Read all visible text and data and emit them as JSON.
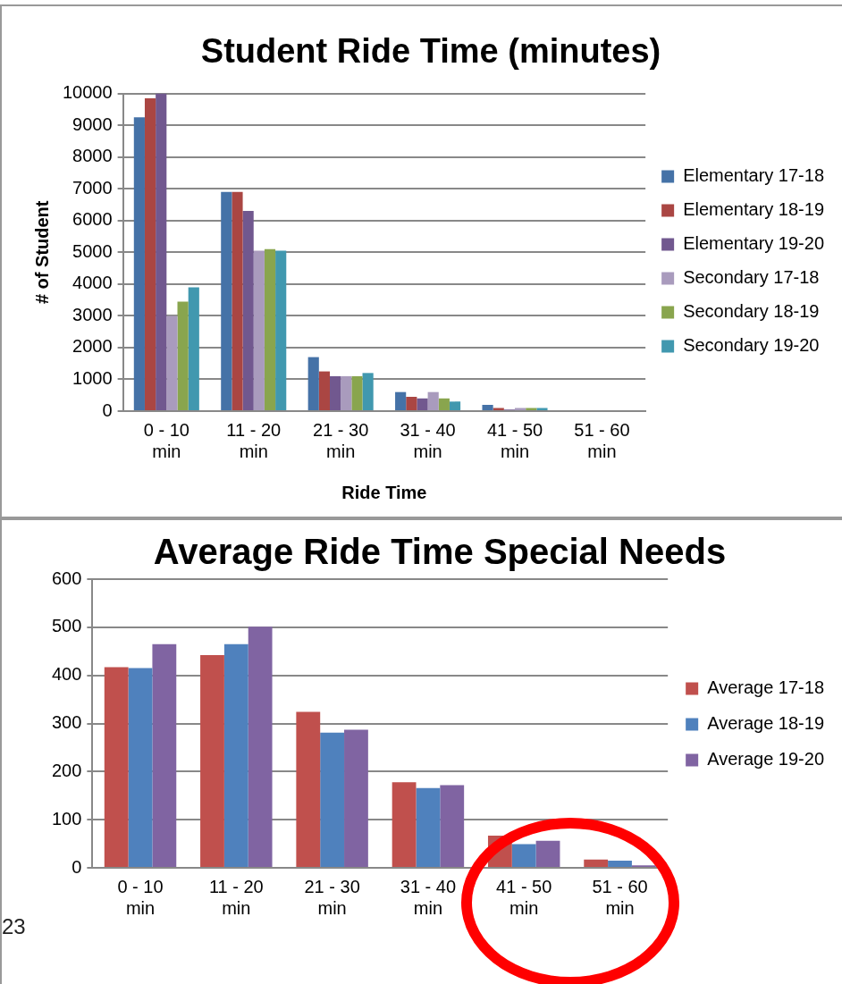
{
  "chart_data": [
    {
      "type": "bar",
      "title": "Student Ride Time (minutes)",
      "xlabel": "Ride Time",
      "ylabel": "# of Student",
      "categories": [
        "0 - 10 min",
        "11 - 20 min",
        "21 - 30 min",
        "31 - 40 min",
        "41 - 50 min",
        "51 - 60 min"
      ],
      "series": [
        {
          "name": "Elementary 17-18",
          "color": "#4572a7",
          "values": [
            9250,
            6900,
            1700,
            600,
            200,
            0
          ]
        },
        {
          "name": "Elementary 18-19",
          "color": "#aa4643",
          "values": [
            9850,
            6900,
            1250,
            450,
            100,
            0
          ]
        },
        {
          "name": "Elementary 19-20",
          "color": "#71588f",
          "values": [
            10000,
            6300,
            1100,
            400,
            50,
            0
          ]
        },
        {
          "name": "Secondary 17-18",
          "color": "#a99bbd",
          "values": [
            3000,
            5050,
            1100,
            600,
            100,
            0
          ]
        },
        {
          "name": "Secondary 18-19",
          "color": "#89a54e",
          "values": [
            3450,
            5100,
            1100,
            400,
            100,
            0
          ]
        },
        {
          "name": "Secondary 19-20",
          "color": "#4198af",
          "values": [
            3900,
            5050,
            1200,
            300,
            100,
            0
          ]
        }
      ],
      "ylim": [
        0,
        10000
      ],
      "yticks": [
        0,
        1000,
        2000,
        3000,
        4000,
        5000,
        6000,
        7000,
        8000,
        9000,
        10000
      ],
      "grid": "y",
      "legend": "right"
    },
    {
      "type": "bar",
      "title": "Average Ride Time Special Needs",
      "categories": [
        "0 - 10 min",
        "11 - 20 min",
        "21 - 30 min",
        "31 - 40 min",
        "41 - 50 min",
        "51 - 60 min"
      ],
      "series": [
        {
          "name": "Average 17-18",
          "color": "#c0504d",
          "values": [
            417,
            442,
            324,
            178,
            67,
            17
          ]
        },
        {
          "name": "Average 18-19",
          "color": "#4f81bd",
          "values": [
            415,
            465,
            281,
            166,
            49,
            15
          ]
        },
        {
          "name": "Average 19-20",
          "color": "#8064a2",
          "values": [
            465,
            501,
            287,
            172,
            56,
            5
          ]
        }
      ],
      "ylim": [
        0,
        600
      ],
      "yticks": [
        0,
        100,
        200,
        300,
        400,
        500,
        600
      ],
      "grid": "y",
      "legend": "right",
      "annotations": [
        "23"
      ]
    }
  ]
}
